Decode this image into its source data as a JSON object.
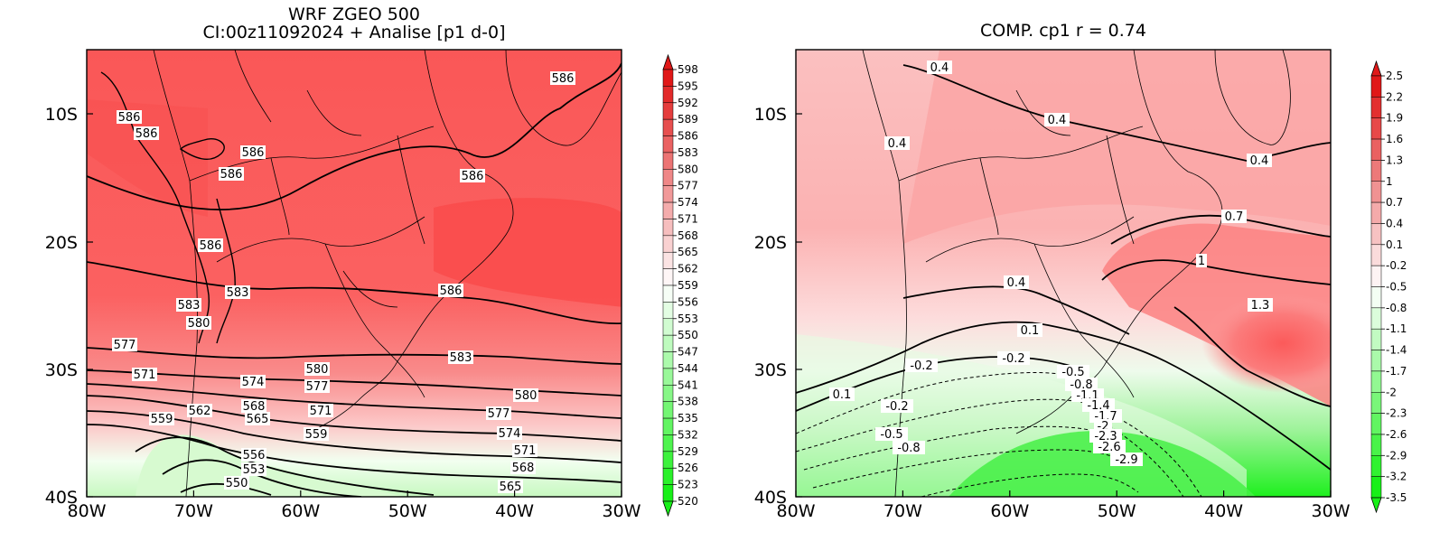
{
  "left_panel": {
    "title_line1": "WRF ZGEO 500",
    "title_line2": "CI:00z11092024 + Analise  [p1 d-0]",
    "colorbar": {
      "labels": [
        "598",
        "595",
        "592",
        "589",
        "586",
        "583",
        "580",
        "577",
        "574",
        "571",
        "568",
        "565",
        "562",
        "559",
        "556",
        "553",
        "550",
        "547",
        "544",
        "541",
        "538",
        "535",
        "532",
        "529",
        "526",
        "523",
        "520"
      ],
      "top_color": "#e01818",
      "bottom_color": "#18f018"
    },
    "contour_labels": [
      "586",
      "586",
      "586",
      "586",
      "586",
      "586",
      "586",
      "586",
      "583",
      "583",
      "583",
      "580",
      "580",
      "580",
      "577",
      "577",
      "577",
      "574",
      "574",
      "571",
      "571",
      "571",
      "568",
      "568",
      "565",
      "565",
      "562",
      "559",
      "559",
      "556",
      "553",
      "550"
    ]
  },
  "right_panel": {
    "title": "COMP. cp1  r =  0.74",
    "colorbar": {
      "labels": [
        "2.5",
        "2.2",
        "1.9",
        "1.6",
        "1.3",
        "1",
        "0.7",
        "0.4",
        "0.1",
        "-0.2",
        "-0.5",
        "-0.8",
        "-1.1",
        "-1.4",
        "-1.7",
        "-2",
        "-2.3",
        "-2.6",
        "-2.9",
        "-3.2",
        "-3.5"
      ],
      "top_color": "#e01818",
      "bottom_color": "#18f018"
    },
    "contour_labels": [
      "0.4",
      "0.4",
      "0.4",
      "0.4",
      "0.4",
      "0.7",
      "1",
      "1.3",
      "0.1",
      "0.1",
      "-0.2",
      "-0.2",
      "-0.2",
      "-0.5",
      "-0.5",
      "-0.8",
      "-0.8",
      "-1.1",
      "-1.4",
      "-1.7",
      "-2",
      "-2.3",
      "-2.6",
      "-2.9"
    ]
  },
  "axes": {
    "x_ticks": [
      "80W",
      "70W",
      "60W",
      "50W",
      "40W",
      "30W"
    ],
    "y_ticks": [
      "10S",
      "20S",
      "30S",
      "40S"
    ]
  },
  "colors": {
    "deep_red": "#fa4e4e",
    "mid_red": "#fb6a6a",
    "light_pink": "#fbc3c3",
    "green": "#2cf02c"
  }
}
